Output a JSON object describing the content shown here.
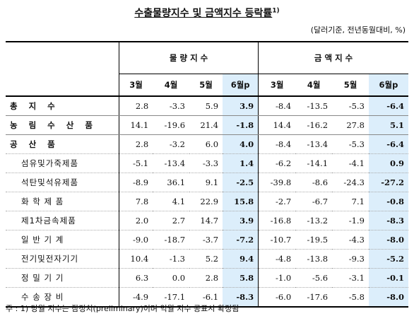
{
  "title": "수출물량지수 및 금액지수 등락률",
  "title_sup": "1)",
  "unit": "(달러기준, 전년동월대비, %)",
  "groups": [
    "물 량 지 수",
    "금 액 지 수"
  ],
  "months": [
    "3월",
    "4월",
    "5월",
    "6월p",
    "3월",
    "4월",
    "5월",
    "6월p"
  ],
  "rows": [
    {
      "label": "총 지 수",
      "kind": "main",
      "v": [
        "2.8",
        "-3.3",
        "5.9",
        "3.9",
        "-8.4",
        "-13.5",
        "-5.3",
        "-6.4"
      ]
    },
    {
      "label": "농 림 수 산 품",
      "kind": "main",
      "v": [
        "14.1",
        "-19.6",
        "21.4",
        "-1.8",
        "14.4",
        "-16.2",
        "27.8",
        "5.1"
      ]
    },
    {
      "label": "공 산 품",
      "kind": "main",
      "v": [
        "2.8",
        "-3.2",
        "6.0",
        "4.0",
        "-8.4",
        "-13.4",
        "-5.3",
        "-6.4"
      ]
    },
    {
      "label": "섬유및가죽제품",
      "kind": "sub",
      "v": [
        "-5.1",
        "-13.4",
        "-3.3",
        "1.4",
        "-6.2",
        "-14.1",
        "-4.1",
        "0.9"
      ]
    },
    {
      "label": "석탄및석유제품",
      "kind": "sub",
      "v": [
        "-8.9",
        "36.1",
        "9.1",
        "-2.5",
        "-39.8",
        "-8.6",
        "-24.3",
        "-27.2"
      ]
    },
    {
      "label": "화 학 제 품",
      "kind": "sub",
      "v": [
        "7.8",
        "4.1",
        "22.9",
        "15.8",
        "-2.7",
        "-6.7",
        "7.1",
        "-0.8"
      ]
    },
    {
      "label": "제1차금속제품",
      "kind": "sub",
      "v": [
        "2.0",
        "2.7",
        "14.7",
        "3.9",
        "-16.8",
        "-13.2",
        "-1.9",
        "-8.3"
      ]
    },
    {
      "label": "일 반 기 계",
      "kind": "sub",
      "v": [
        "-9.0",
        "-18.7",
        "-3.7",
        "-7.2",
        "-10.7",
        "-19.5",
        "-4.3",
        "-8.0"
      ]
    },
    {
      "label": "전기및전자기기",
      "kind": "sub",
      "v": [
        "10.4",
        "-1.3",
        "5.2",
        "9.4",
        "-4.8",
        "-13.8",
        "-9.3",
        "-5.2"
      ]
    },
    {
      "label": "정 밀 기 기",
      "kind": "sub",
      "v": [
        "6.3",
        "0.0",
        "2.8",
        "5.8",
        "-1.0",
        "-5.6",
        "-3.1",
        "-0.1"
      ]
    },
    {
      "label": "수 송 장 비",
      "kind": "sub",
      "v": [
        "-4.9",
        "-17.1",
        "-6.1",
        "-8.3",
        "-6.0",
        "-17.6",
        "-5.8",
        "-8.0"
      ]
    }
  ],
  "note": "주 : 1) 당월 지수는 잠정치(preliminary)이며 익월 지수 공표시 확정됨"
}
